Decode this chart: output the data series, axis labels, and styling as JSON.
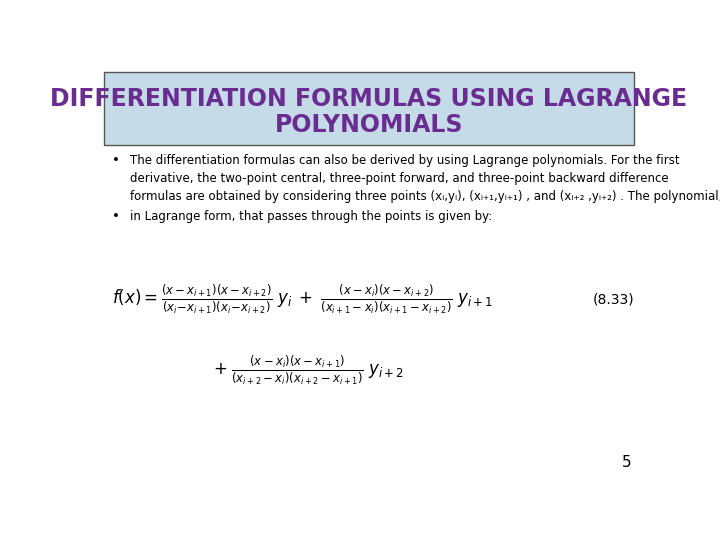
{
  "title_line1": "DIFFERENTIATION FORMULAS USING LAGRANGE",
  "title_line2": "POLYNOMIALS",
  "title_color": "#6B2C91",
  "title_bg_color": "#C5DCE8",
  "title_border_color": "#555555",
  "bg_color": "#FFFFFF",
  "bullet1_line1": "The differentiation formulas can also be derived by using Lagrange polynomials. For the first",
  "bullet1_line2": "derivative, the two-point central, three-point forward, and three-point backward difference",
  "bullet1_line3": "formulas are obtained by considering three points (xᵢ,yᵢ), (xᵢ₊₁,yᵢ₊₁) , and (xᵢ₊₂ ,yᵢ₊₂) . The polynomial,",
  "bullet2": "in Lagrange form, that passes through the points is given by:",
  "page_number": "5",
  "equation_number": "(8.33)",
  "text_color": "#000000",
  "font_size_title": 17,
  "font_size_body": 8.5
}
